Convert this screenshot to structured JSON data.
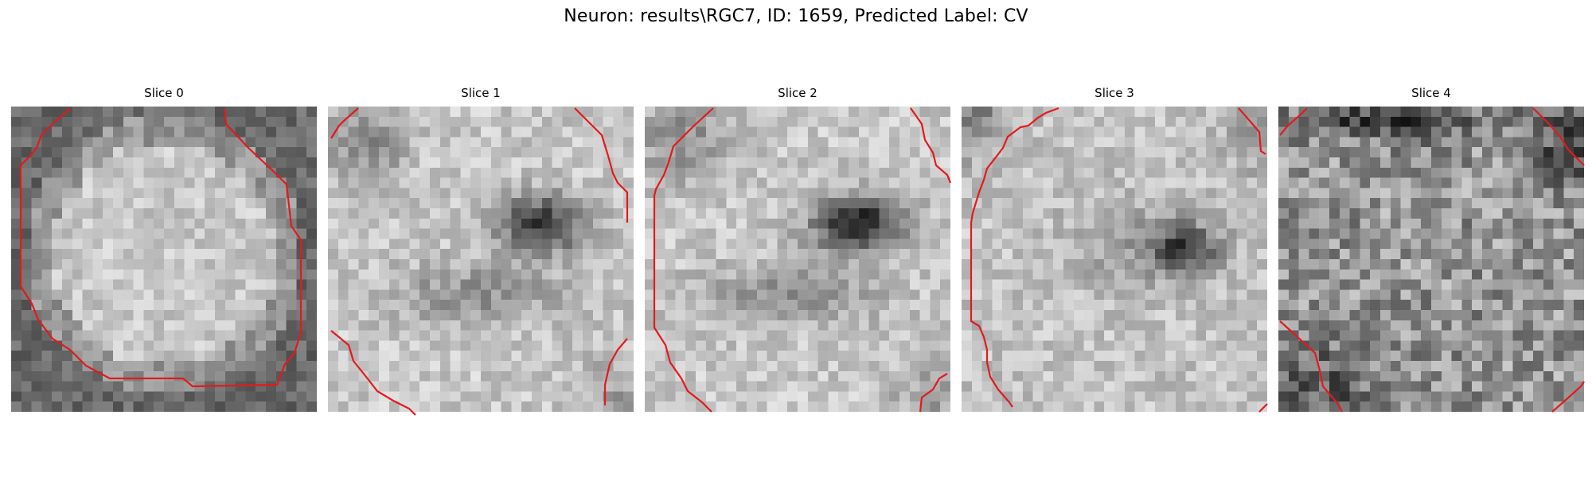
{
  "suptitle": "Neuron: results\\RGC7, ID: 1659, Predicted Label: CV",
  "contour_color": "#e31a1c",
  "slices": [
    {
      "label": "Slice 0",
      "pattern": "bright-disk"
    },
    {
      "label": "Slice 1",
      "pattern": "dark-nucleus"
    },
    {
      "label": "Slice 2",
      "pattern": "dark-nucleus-strong"
    },
    {
      "label": "Slice 3",
      "pattern": "faint-nucleus"
    },
    {
      "label": "Slice 4",
      "pattern": "noise"
    }
  ]
}
